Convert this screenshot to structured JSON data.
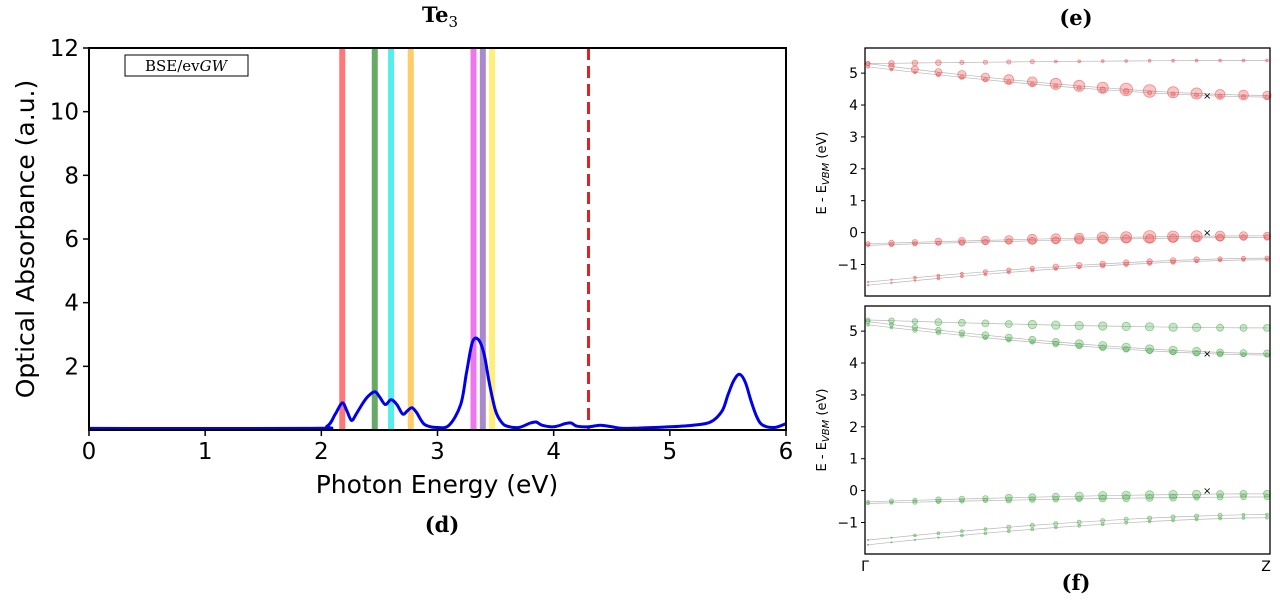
{
  "chart_data": [
    {
      "id": "d",
      "type": "line",
      "panel_label": "(d)",
      "title": "Te",
      "title_subscript": "3",
      "xlabel": "Photon Energy (eV)",
      "ylabel": "Optical Absorbance (a.u.)",
      "xlim": [
        0,
        6
      ],
      "ylim": [
        0,
        12
      ],
      "xticks": [
        0,
        1,
        2,
        3,
        4,
        5,
        6
      ],
      "yticks": [
        2,
        4,
        6,
        8,
        10,
        12
      ],
      "annotation": "BSE/evGW",
      "annotation_parts": {
        "prefix": "BSE/ev",
        "italic": "GW"
      },
      "series": [
        {
          "name": "absorbance",
          "color": "#0000ee",
          "x": [
            0,
            1.9,
            2.05,
            2.12,
            2.18,
            2.22,
            2.26,
            2.3,
            2.35,
            2.4,
            2.46,
            2.5,
            2.55,
            2.6,
            2.65,
            2.7,
            2.74,
            2.78,
            2.82,
            2.86,
            2.9,
            3.0,
            3.1,
            3.2,
            3.25,
            3.3,
            3.35,
            3.4,
            3.45,
            3.5,
            3.55,
            3.6,
            3.7,
            3.8,
            3.85,
            3.9,
            4.0,
            4.1,
            4.15,
            4.2,
            4.3,
            4.4,
            4.5,
            4.6,
            4.8,
            5.0,
            5.2,
            5.35,
            5.45,
            5.5,
            5.55,
            5.6,
            5.65,
            5.7,
            5.75,
            5.8,
            5.9,
            6.0
          ],
          "values": [
            0.05,
            0.05,
            0.12,
            0.5,
            0.85,
            0.6,
            0.3,
            0.5,
            0.8,
            1.05,
            1.2,
            1.05,
            0.8,
            0.95,
            0.8,
            0.5,
            0.6,
            0.7,
            0.55,
            0.3,
            0.15,
            0.08,
            0.15,
            0.8,
            1.8,
            2.75,
            2.85,
            2.4,
            1.4,
            0.6,
            0.25,
            0.12,
            0.08,
            0.22,
            0.25,
            0.15,
            0.1,
            0.2,
            0.22,
            0.12,
            0.1,
            0.15,
            0.1,
            0.05,
            0.07,
            0.1,
            0.15,
            0.25,
            0.6,
            1.1,
            1.55,
            1.75,
            1.5,
            0.9,
            0.4,
            0.15,
            0.08,
            0.2
          ]
        }
      ],
      "vertical_lines": [
        {
          "x": 2.18,
          "color": "#ff7777"
        },
        {
          "x": 2.46,
          "color": "#66aa66"
        },
        {
          "x": 2.6,
          "color": "#55eeee"
        },
        {
          "x": 2.77,
          "color": "#ffcc66"
        },
        {
          "x": 3.31,
          "color": "#ee77ee"
        },
        {
          "x": 3.39,
          "color": "#aa88cc"
        },
        {
          "x": 3.47,
          "color": "#ffee77"
        },
        {
          "x": 4.3,
          "color": "#dd2222",
          "dashed": true
        }
      ]
    },
    {
      "id": "e",
      "type": "scatter",
      "panel_label": "(e)",
      "ylabel_prefix": "E - E",
      "ylabel_subscript": "VBM",
      "ylabel_unit": " (eV)",
      "ylim": [
        -1.8,
        5.6
      ],
      "yticks": [
        -1,
        0,
        1,
        2,
        3,
        4,
        5
      ],
      "color": "#ee4444",
      "bands": [
        {
          "y0": 5.3,
          "y1": 5.4,
          "w": [
            3,
            4,
            4,
            4,
            3,
            3,
            3,
            3,
            2,
            2,
            2,
            2,
            2,
            2,
            2,
            2,
            2,
            2
          ]
        },
        {
          "y0": 5.3,
          "y1": 4.3,
          "w": [
            3,
            4,
            5,
            5,
            6,
            6,
            7,
            7,
            8,
            8,
            8,
            9,
            9,
            8,
            8,
            7,
            7,
            6
          ]
        },
        {
          "y0": 5.2,
          "y1": 4.25,
          "w": [
            2,
            2,
            2,
            3,
            3,
            3,
            3,
            3,
            3,
            3,
            4,
            4,
            3,
            3,
            3,
            3,
            3,
            3
          ]
        },
        {
          "y0": -0.35,
          "y1": -0.1,
          "w": [
            3,
            4,
            4,
            5,
            5,
            6,
            6,
            7,
            7,
            7,
            8,
            8,
            9,
            8,
            8,
            7,
            6,
            5
          ]
        },
        {
          "y0": -0.4,
          "y1": -0.15,
          "w": [
            2,
            3,
            3,
            3,
            4,
            4,
            4,
            5,
            5,
            6,
            6,
            6,
            6,
            6,
            5,
            5,
            4,
            4
          ]
        },
        {
          "y0": -1.55,
          "y1": -0.8,
          "w": [
            1,
            1,
            2,
            2,
            2,
            3,
            3,
            3,
            4,
            4,
            4,
            4,
            4,
            4,
            4,
            3,
            3,
            3
          ]
        },
        {
          "y0": -1.65,
          "y1": -0.85,
          "w": [
            1,
            1,
            1,
            2,
            2,
            2,
            2,
            2,
            2,
            2,
            3,
            3,
            3,
            3,
            2,
            2,
            2,
            2
          ]
        }
      ],
      "markers": [
        {
          "k": 0.85,
          "y": 4.3
        },
        {
          "k": 0.85,
          "y": 0.0
        }
      ]
    },
    {
      "id": "f",
      "type": "scatter",
      "panel_label": "(f)",
      "ylabel_prefix": "E - E",
      "ylabel_subscript": "VBM",
      "ylabel_unit": " (eV)",
      "ylim": [
        -1.8,
        5.6
      ],
      "yticks": [
        -1,
        0,
        1,
        2,
        3,
        4,
        5
      ],
      "xticks": [
        "Γ",
        "Z"
      ],
      "color": "#44aa44",
      "bands": [
        {
          "y0": 5.35,
          "y1": 5.1,
          "w": [
            3,
            4,
            4,
            5,
            5,
            5,
            5,
            6,
            6,
            6,
            6,
            6,
            6,
            6,
            6,
            5,
            5,
            5
          ]
        },
        {
          "y0": 5.3,
          "y1": 4.3,
          "w": [
            3,
            3,
            4,
            4,
            4,
            5,
            5,
            5,
            5,
            6,
            6,
            6,
            6,
            6,
            6,
            5,
            5,
            5
          ]
        },
        {
          "y0": 5.2,
          "y1": 4.25,
          "w": [
            2,
            2,
            3,
            3,
            3,
            3,
            3,
            3,
            4,
            4,
            4,
            4,
            4,
            4,
            4,
            4,
            3,
            3
          ]
        },
        {
          "y0": -0.35,
          "y1": -0.1,
          "w": [
            2,
            3,
            3,
            4,
            4,
            4,
            5,
            5,
            5,
            6,
            6,
            6,
            6,
            6,
            6,
            5,
            5,
            5
          ]
        },
        {
          "y0": -0.4,
          "y1": -0.2,
          "w": [
            2,
            2,
            3,
            3,
            3,
            3,
            4,
            4,
            4,
            4,
            5,
            5,
            5,
            5,
            4,
            4,
            4,
            4
          ]
        },
        {
          "y0": -1.55,
          "y1": -0.75,
          "w": [
            1,
            1,
            2,
            2,
            2,
            2,
            3,
            3,
            3,
            3,
            3,
            3,
            3,
            3,
            3,
            3,
            2,
            2
          ]
        },
        {
          "y0": -1.7,
          "y1": -0.85,
          "w": [
            1,
            1,
            1,
            1,
            2,
            2,
            2,
            2,
            2,
            2,
            2,
            2,
            2,
            2,
            2,
            2,
            2,
            2
          ]
        }
      ],
      "markers": [
        {
          "k": 0.85,
          "y": 4.3
        },
        {
          "k": 0.85,
          "y": 0.0
        }
      ]
    }
  ]
}
